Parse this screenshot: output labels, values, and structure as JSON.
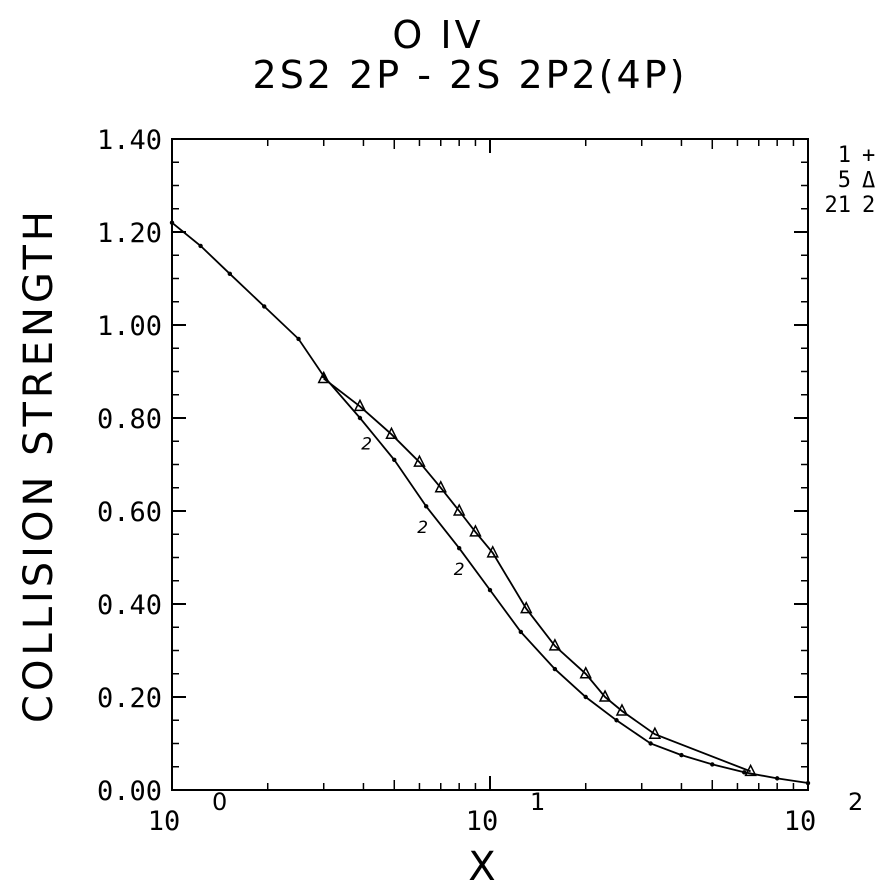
{
  "chart_data": {
    "type": "line",
    "title": "O IV",
    "subtitle": "2S2 2P - 2S 2P2(4P)",
    "xlabel": "X",
    "ylabel": "COLLISION STRENGTH",
    "x_scale": "log",
    "xlim": [
      1,
      100
    ],
    "ylim": [
      0,
      1.4
    ],
    "x_ticks": [
      {
        "base": "10",
        "exp": "0"
      },
      {
        "base": "10",
        "exp": "1"
      },
      {
        "base": "10",
        "exp": "2"
      }
    ],
    "y_ticks": [
      "0.00",
      "0.20",
      "0.40",
      "0.60",
      "0.80",
      "1.00",
      "1.20",
      "1.40"
    ],
    "legend": [
      {
        "n": "1",
        "symbol": "+"
      },
      {
        "n": "5",
        "symbol": "Δ"
      },
      {
        "n": "21",
        "symbol": "2"
      }
    ],
    "series": [
      {
        "name": "1",
        "marker": "+",
        "x": [
          1.0,
          1.23,
          1.52,
          1.95,
          2.5,
          3.0,
          3.9,
          5.0,
          6.3,
          8.0,
          10.0,
          12.5,
          16.0,
          20.0,
          25.0,
          32.0,
          40.0,
          50.0,
          63.0,
          80.0,
          100.0
        ],
        "y": [
          1.22,
          1.17,
          1.11,
          1.04,
          0.97,
          0.89,
          0.8,
          0.71,
          0.61,
          0.52,
          0.43,
          0.34,
          0.26,
          0.2,
          0.15,
          0.1,
          0.075,
          0.055,
          0.038,
          0.025,
          0.015
        ]
      },
      {
        "name": "5",
        "marker": "Δ",
        "x": [
          3.0,
          3.9,
          4.9,
          6.0,
          7.0,
          8.0,
          9.0,
          10.2,
          13.0,
          16.0,
          20.0,
          23.0,
          26.0,
          33.0,
          66.0
        ],
        "y": [
          0.885,
          0.825,
          0.765,
          0.705,
          0.65,
          0.6,
          0.555,
          0.51,
          0.39,
          0.31,
          0.25,
          0.2,
          0.17,
          0.12,
          0.04
        ]
      },
      {
        "name": "21",
        "marker": "2",
        "x": [
          4.4,
          6.6,
          8.6
        ],
        "y": [
          0.75,
          0.57,
          0.48
        ]
      }
    ]
  }
}
